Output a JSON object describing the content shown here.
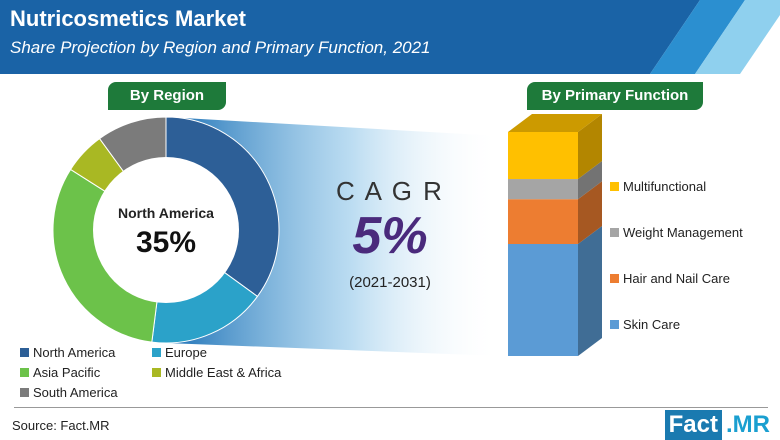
{
  "header": {
    "title": "Nutricosmetics Market",
    "subtitle": "Share Projection by Region and Primary Function, 2021"
  },
  "badges": {
    "region": "By Region",
    "function": "By Primary Function"
  },
  "center": {
    "label": "North America",
    "value": "35%"
  },
  "cagr": {
    "label": "C A G R",
    "value": "5%",
    "period": "(2021-2031)"
  },
  "colors": {
    "header": "#1a63a6",
    "badge": "#1e7a3a",
    "cagr": "#4a2a7c"
  },
  "chart_data": [
    {
      "type": "pie",
      "title": "By Region",
      "categories": [
        "North America",
        "Europe",
        "Asia Pacific",
        "Middle East & Africa",
        "South America"
      ],
      "values": [
        35,
        17,
        32,
        6,
        10
      ],
      "colors": [
        "#2d5f97",
        "#2ba2c9",
        "#6cc24a",
        "#a9b823",
        "#7b7b7b"
      ],
      "legend": "bottom"
    },
    {
      "type": "bar",
      "title": "By Primary Function",
      "stacked": true,
      "categories": [
        "Skin Care",
        "Hair and Nail Care",
        "Weight Management",
        "Multifunctional"
      ],
      "values": [
        50,
        20,
        9,
        21
      ],
      "colors": [
        "#5b9bd5",
        "#ed7d31",
        "#a5a5a5",
        "#ffc000"
      ],
      "legend": "right"
    }
  ],
  "footer": {
    "source": "Source: Fact.MR",
    "logo_a": "Fact",
    "logo_b": ".MR"
  }
}
